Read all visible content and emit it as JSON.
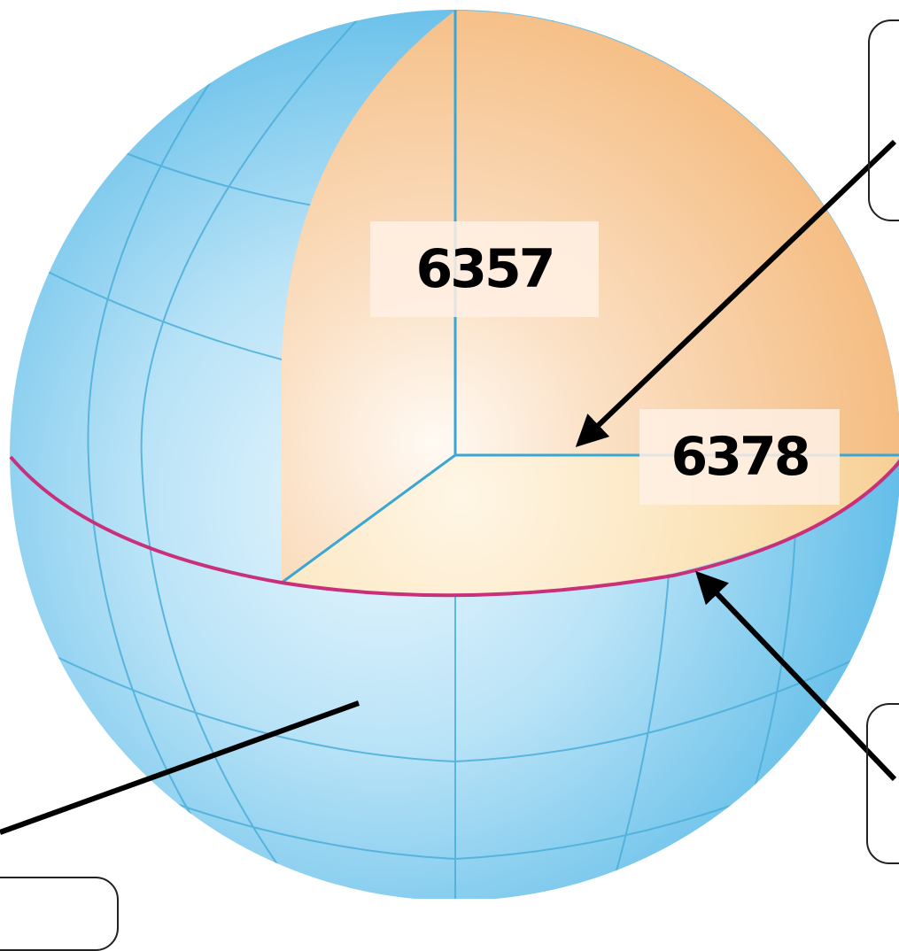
{
  "diagram": {
    "labels": {
      "polar_radius": "6357",
      "equatorial_radius": "6378"
    },
    "callouts": [
      {
        "id": "top-right",
        "text": ""
      },
      {
        "id": "bottom-right",
        "text": ""
      },
      {
        "id": "bottom-left",
        "text": ""
      }
    ],
    "colors": {
      "sphere_surface": "#5bbce8",
      "sphere_highlight": "#e4f5fd",
      "cutaway_interior": "#f6c491",
      "cutaway_floor": "#f9d9a8",
      "grid_lines": "#4aaed9",
      "equator": "#c8307a",
      "axis_lines": "#3aa6d2",
      "arrows": "#000000"
    }
  }
}
